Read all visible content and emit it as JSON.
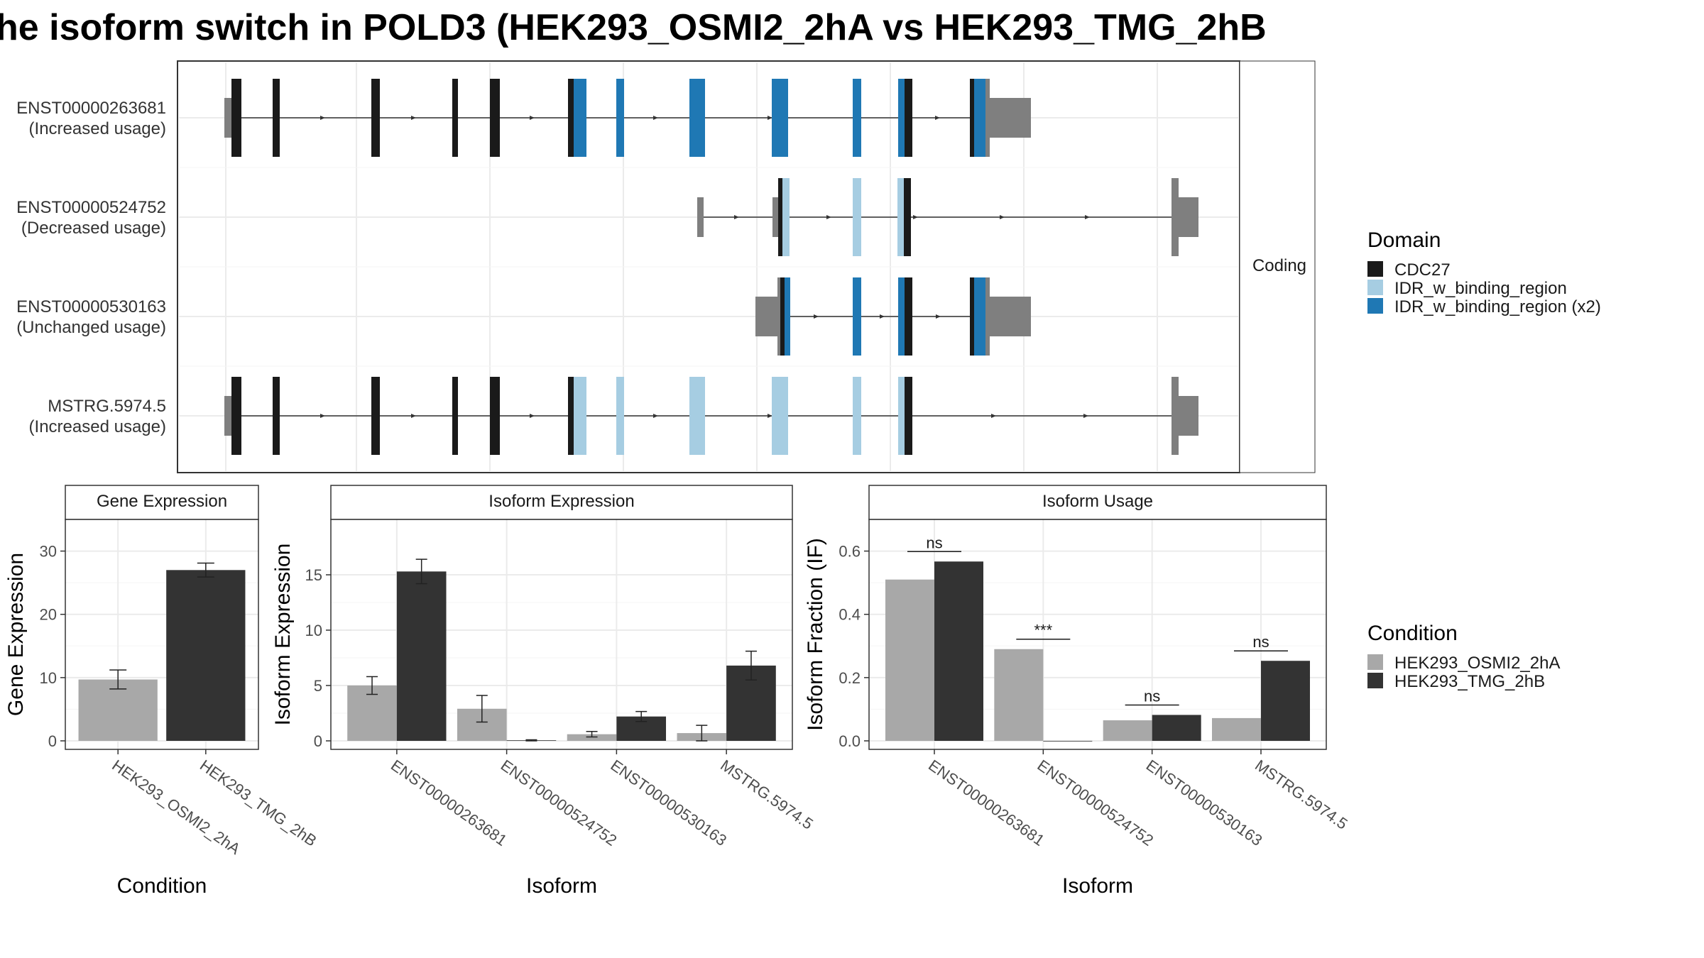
{
  "title": "he isoform switch in POLD3 (HEK293_OSMI2_2hA vs HEK293_TMG_2hB",
  "colors": {
    "cdc27": "#1a1a1a",
    "idr_light": "#a6cde2",
    "idr_dark": "#1f78b4",
    "utr": "#7f7f7f",
    "cond1": "#a8a8a8",
    "cond2": "#333333"
  },
  "structure": {
    "facet_label": "Coding",
    "isoforms": [
      {
        "id": "ENST00000263681",
        "status": "(Increased usage)"
      },
      {
        "id": "ENST00000524752",
        "status": "(Decreased usage)"
      },
      {
        "id": "ENST00000530163",
        "status": "(Unchanged usage)"
      },
      {
        "id": "MSTRG.5974.5",
        "status": "(Increased usage)"
      }
    ]
  },
  "legend_domain": {
    "title": "Domain",
    "items": [
      "CDC27",
      "IDR_w_binding_region",
      "IDR_w_binding_region (x2)"
    ]
  },
  "legend_condition": {
    "title": "Condition",
    "items": [
      "HEK293_OSMI2_2hA",
      "HEK293_TMG_2hB"
    ]
  },
  "chart_data": [
    {
      "type": "bar",
      "title": "Gene Expression",
      "xlabel": "Condition",
      "ylabel": "Gene Expression",
      "categories": [
        "HEK293_OSMI2_2hA",
        "HEK293_TMG_2hB"
      ],
      "values": [
        9.7,
        27.0
      ],
      "errors": [
        1.5,
        1.1
      ],
      "ylim": [
        0,
        35
      ],
      "yticks": [
        0,
        10,
        20,
        30
      ]
    },
    {
      "type": "bar",
      "title": "Isoform Expression",
      "xlabel": "Isoform",
      "ylabel": "Isoform Expression",
      "categories": [
        "ENST00000263681",
        "ENST00000524752",
        "ENST00000530163",
        "MSTRG.5974.5"
      ],
      "series": [
        {
          "name": "HEK293_OSMI2_2hA",
          "values": [
            5.0,
            2.9,
            0.6,
            0.7
          ],
          "errors": [
            0.8,
            1.2,
            0.25,
            0.7
          ]
        },
        {
          "name": "HEK293_TMG_2hB",
          "values": [
            15.3,
            0.05,
            2.2,
            6.8
          ],
          "errors": [
            1.1,
            0.05,
            0.45,
            1.3
          ]
        }
      ],
      "ylim": [
        0,
        20
      ],
      "yticks": [
        0,
        5,
        10,
        15
      ]
    },
    {
      "type": "bar",
      "title": "Isoform Usage",
      "xlabel": "Isoform",
      "ylabel": "Isoform Fraction (IF)",
      "categories": [
        "ENST00000263681",
        "ENST00000524752",
        "ENST00000530163",
        "MSTRG.5974.5"
      ],
      "series": [
        {
          "name": "HEK293_OSMI2_2hA",
          "values": [
            0.51,
            0.29,
            0.065,
            0.072
          ]
        },
        {
          "name": "HEK293_TMG_2hB",
          "values": [
            0.567,
            0.0,
            0.082,
            0.253
          ]
        }
      ],
      "significance": [
        "ns",
        "***",
        "ns",
        "ns"
      ],
      "ylim": [
        0,
        0.7
      ],
      "yticks": [
        0.0,
        0.2,
        0.4,
        0.6
      ]
    }
  ]
}
